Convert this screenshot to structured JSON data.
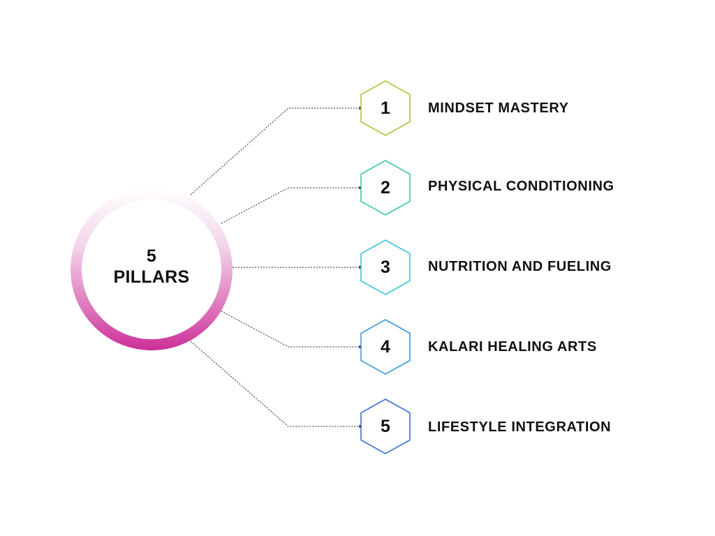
{
  "center": {
    "line1": "5",
    "line2": "PILLARS",
    "ring_gradient": [
      "#ffffff",
      "#f3d6ea",
      "#e07fc0",
      "#cc2f98"
    ]
  },
  "pillars": [
    {
      "number": "1",
      "label": "MINDSET MASTERY",
      "color": "#a3c93a"
    },
    {
      "number": "2",
      "label": "PHYSICAL CONDITIONING",
      "color": "#3ac9a6"
    },
    {
      "number": "3",
      "label": "NUTRITION AND FUELING",
      "color": "#3ac6d6"
    },
    {
      "number": "4",
      "label": "KALARI HEALING ARTS",
      "color": "#3a9ad6"
    },
    {
      "number": "5",
      "label": "LIFESTYLE INTEGRATION",
      "color": "#3a6fd0"
    }
  ],
  "connector": {
    "color": "#222222",
    "style": "dotted"
  }
}
